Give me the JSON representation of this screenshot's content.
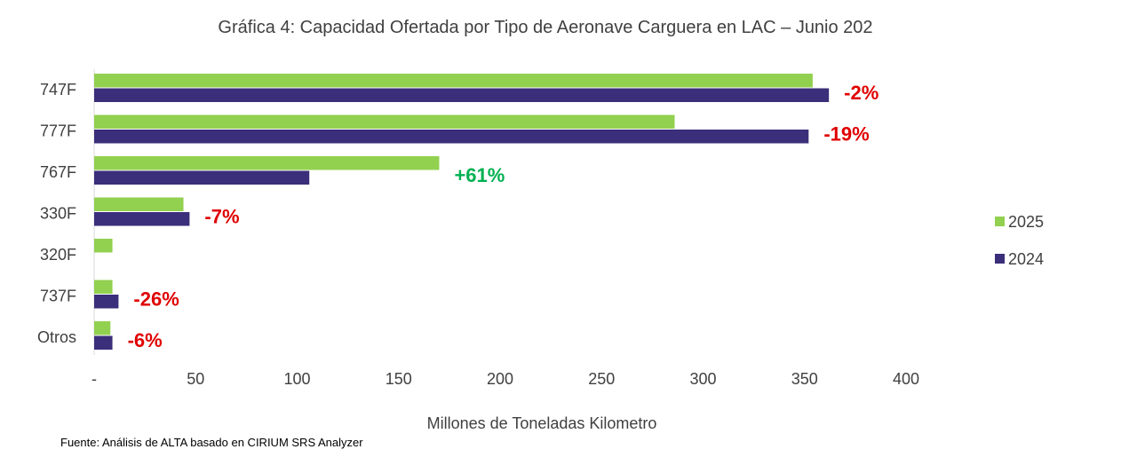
{
  "chart_data": {
    "type": "bar",
    "orientation": "horizontal",
    "title": "Gráfica 4: Capacidad Ofertada por Tipo de Aeronave Carguera en LAC – Junio 202",
    "xlabel": "Millones de Toneladas Kilometro",
    "ylabel": "",
    "categories": [
      "747F",
      "777F",
      "767F",
      "330F",
      "320F",
      "737F",
      "Otros"
    ],
    "series": [
      {
        "name": "2025",
        "color": "#92d050",
        "values": [
          354,
          286,
          170,
          44,
          9,
          9,
          8
        ]
      },
      {
        "name": "2024",
        "color": "#3b2e7a",
        "values": [
          362,
          352,
          106,
          47,
          0,
          12,
          9
        ]
      }
    ],
    "data_labels": [
      {
        "category": "747F",
        "text": "-2%",
        "color": "#e00000"
      },
      {
        "category": "777F",
        "text": "-19%",
        "color": "#e00000"
      },
      {
        "category": "767F",
        "text": "+61%",
        "color": "#00b050"
      },
      {
        "category": "330F",
        "text": "-7%",
        "color": "#e00000"
      },
      {
        "category": "320F",
        "text": "",
        "color": "#e00000"
      },
      {
        "category": "737F",
        "text": "-26%",
        "color": "#e00000"
      },
      {
        "category": "Otros",
        "text": "-6%",
        "color": "#e00000"
      }
    ],
    "x_ticks": [
      "-",
      "50",
      "100",
      "150",
      "200",
      "250",
      "300",
      "350",
      "400"
    ],
    "xlim": [
      0,
      400
    ],
    "grid": false,
    "legend_position": "right",
    "footnote": "Fuente: Análisis de ALTA basado en CIRIUM SRS Analyzer"
  }
}
